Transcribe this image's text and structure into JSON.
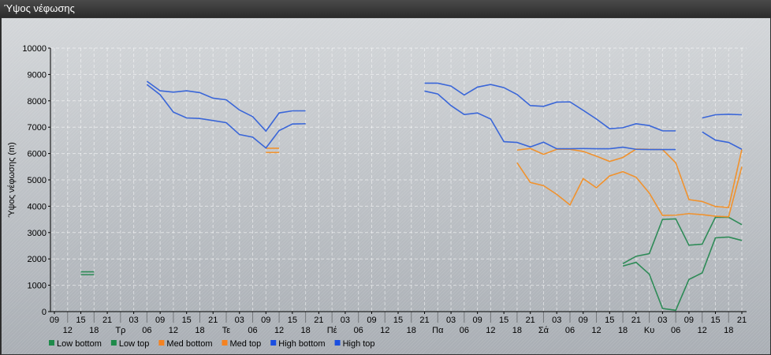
{
  "window": {
    "title": "Ύψος νέφωσης"
  },
  "chart_data": {
    "type": "line",
    "title": "",
    "ylabel": "Ύψος νέφωσης (m)",
    "xlabel": "",
    "ylim": [
      0,
      10000
    ],
    "yticks": [
      0,
      1000,
      2000,
      3000,
      4000,
      5000,
      6000,
      7000,
      8000,
      9000,
      10000
    ],
    "grid": true,
    "legend_position": "bottom-left",
    "categories": [
      "09",
      "12",
      "15",
      "18",
      "21",
      "Τρ",
      "03",
      "06",
      "09",
      "12",
      "15",
      "18",
      "21",
      "Τε",
      "03",
      "06",
      "09",
      "12",
      "15",
      "18",
      "21",
      "Πέ",
      "03",
      "06",
      "09",
      "12",
      "15",
      "18",
      "21",
      "Πα",
      "03",
      "06",
      "09",
      "12",
      "15",
      "18",
      "21",
      "Σά",
      "03",
      "06",
      "09",
      "12",
      "15",
      "18",
      "21",
      "Κυ",
      "03",
      "06",
      "09",
      "12",
      "15",
      "18",
      "21"
    ],
    "series": [
      {
        "name": "Low bottom",
        "color": "#2e8b57",
        "legend_color": "#1e8a4a",
        "values": [
          null,
          null,
          1400,
          1400,
          null,
          null,
          null,
          null,
          null,
          null,
          null,
          null,
          null,
          null,
          null,
          null,
          null,
          null,
          null,
          null,
          null,
          null,
          null,
          null,
          null,
          null,
          null,
          null,
          null,
          null,
          null,
          null,
          null,
          null,
          null,
          null,
          null,
          null,
          null,
          null,
          null,
          null,
          null,
          1730,
          1870,
          1420,
          120,
          50,
          1220,
          1470,
          2800,
          2830,
          2700
        ]
      },
      {
        "name": "Low top",
        "color": "#2e8b57",
        "legend_color": "#1e8a4a",
        "values": [
          null,
          null,
          1510,
          1510,
          null,
          null,
          null,
          null,
          null,
          null,
          null,
          null,
          null,
          null,
          null,
          null,
          null,
          null,
          null,
          null,
          null,
          null,
          null,
          null,
          null,
          null,
          null,
          null,
          null,
          null,
          null,
          null,
          null,
          null,
          null,
          null,
          null,
          null,
          null,
          null,
          null,
          null,
          null,
          1820,
          2100,
          2200,
          3500,
          3520,
          2520,
          2560,
          3580,
          3580,
          3300
        ]
      },
      {
        "name": "Med bottom",
        "color": "#f0922e",
        "legend_color": "#f58220",
        "values": [
          null,
          null,
          null,
          null,
          null,
          null,
          null,
          null,
          null,
          null,
          null,
          null,
          null,
          null,
          null,
          null,
          6040,
          6040,
          null,
          null,
          null,
          null,
          null,
          null,
          null,
          null,
          null,
          null,
          null,
          null,
          null,
          null,
          null,
          null,
          null,
          5650,
          4900,
          4780,
          4450,
          4050,
          5050,
          4700,
          5150,
          5310,
          5100,
          4500,
          3650,
          3660,
          3720,
          3680,
          3620,
          3600,
          5500
        ]
      },
      {
        "name": "Med top",
        "color": "#f0922e",
        "legend_color": "#f58220",
        "values": [
          null,
          null,
          null,
          null,
          null,
          null,
          null,
          null,
          null,
          null,
          null,
          null,
          null,
          null,
          null,
          null,
          6200,
          6200,
          null,
          null,
          null,
          null,
          null,
          null,
          null,
          null,
          null,
          null,
          null,
          null,
          null,
          null,
          null,
          null,
          null,
          6130,
          6190,
          5970,
          6160,
          6160,
          6080,
          5900,
          5700,
          5850,
          6170,
          6160,
          6150,
          5650,
          4250,
          4180,
          3990,
          3950,
          6150
        ]
      },
      {
        "name": "High bottom",
        "color": "#3a66d8",
        "legend_color": "#1a4ee0",
        "values": [
          null,
          null,
          null,
          null,
          null,
          null,
          null,
          8620,
          8230,
          7570,
          7350,
          7330,
          7250,
          7170,
          6720,
          6620,
          6210,
          6870,
          7120,
          7130,
          null,
          null,
          null,
          null,
          null,
          null,
          null,
          null,
          8370,
          8260,
          7820,
          7480,
          7540,
          7310,
          6450,
          6420,
          6250,
          6430,
          6180,
          6180,
          6190,
          6180,
          6180,
          6240,
          6160,
          6150,
          6150,
          6150,
          null,
          6820,
          6510,
          6420,
          6160
        ]
      },
      {
        "name": "High top",
        "color": "#3a66d8",
        "legend_color": "#1a4ee0",
        "values": [
          null,
          null,
          null,
          null,
          null,
          null,
          null,
          8740,
          8380,
          8330,
          8380,
          8310,
          8100,
          8040,
          7650,
          7400,
          6850,
          7540,
          7620,
          7620,
          null,
          null,
          null,
          null,
          null,
          null,
          null,
          null,
          8670,
          8670,
          8560,
          8220,
          8520,
          8620,
          8500,
          8240,
          7820,
          7790,
          7950,
          7960,
          7640,
          7310,
          6940,
          6980,
          7130,
          7060,
          6860,
          6860,
          null,
          7350,
          7470,
          7490,
          7470
        ]
      }
    ]
  }
}
